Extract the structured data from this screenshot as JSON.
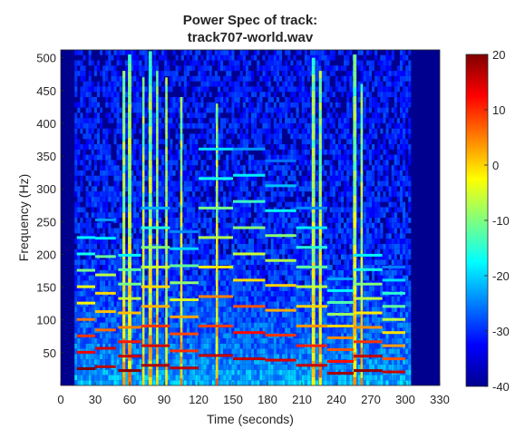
{
  "chart_data": {
    "type": "heatmap",
    "title_line1": "Power Spec of track:",
    "title_line2": "track707-world.wav",
    "xlabel": "Time (seconds)",
    "ylabel": "Frequency (Hz)",
    "xlim": [
      0,
      330
    ],
    "ylim": [
      0,
      512
    ],
    "x_ticks": [
      0,
      30,
      60,
      90,
      120,
      150,
      180,
      210,
      240,
      270,
      300,
      330
    ],
    "y_ticks": [
      50,
      100,
      150,
      200,
      250,
      300,
      350,
      400,
      450,
      500
    ],
    "signal_range_s": [
      12,
      305
    ],
    "colorbar": {
      "colormap": "jet",
      "clim": [
        -40,
        20
      ],
      "ticks": [
        20,
        10,
        0,
        -10,
        -20,
        -30,
        -40
      ]
    },
    "vertical_bands_s": [
      {
        "t": 55,
        "w": 2.5,
        "top": 480
      },
      {
        "t": 60,
        "w": 3,
        "top": 505
      },
      {
        "t": 72,
        "w": 2,
        "top": 470
      },
      {
        "t": 78,
        "w": 3,
        "top": 510
      },
      {
        "t": 84,
        "w": 2,
        "top": 480
      },
      {
        "t": 92,
        "w": 2,
        "top": 470
      },
      {
        "t": 105,
        "w": 2,
        "top": 440
      },
      {
        "t": 136,
        "w": 2,
        "top": 430
      },
      {
        "t": 220,
        "w": 3,
        "top": 500
      },
      {
        "t": 226,
        "w": 2.5,
        "top": 480
      },
      {
        "t": 256,
        "w": 3,
        "top": 505
      },
      {
        "t": 262,
        "w": 2,
        "top": 460
      }
    ],
    "harmonic_segments": [
      {
        "t0": 14,
        "t1": 30,
        "f": 25,
        "level": 18
      },
      {
        "t0": 30,
        "t1": 48,
        "f": 28,
        "level": 16
      },
      {
        "t0": 50,
        "t1": 70,
        "f": 22,
        "level": 19
      },
      {
        "t0": 70,
        "t1": 95,
        "f": 30,
        "level": 17
      },
      {
        "t0": 95,
        "t1": 120,
        "f": 26,
        "level": 15
      },
      {
        "t0": 120,
        "t1": 150,
        "f": 45,
        "level": 12
      },
      {
        "t0": 150,
        "t1": 178,
        "f": 40,
        "level": 14
      },
      {
        "t0": 178,
        "t1": 205,
        "f": 38,
        "level": 12
      },
      {
        "t0": 205,
        "t1": 232,
        "f": 30,
        "level": 13
      },
      {
        "t0": 232,
        "t1": 255,
        "f": 18,
        "level": 16
      },
      {
        "t0": 255,
        "t1": 280,
        "f": 22,
        "level": 18
      },
      {
        "t0": 280,
        "t1": 300,
        "f": 20,
        "level": 12
      }
    ]
  }
}
